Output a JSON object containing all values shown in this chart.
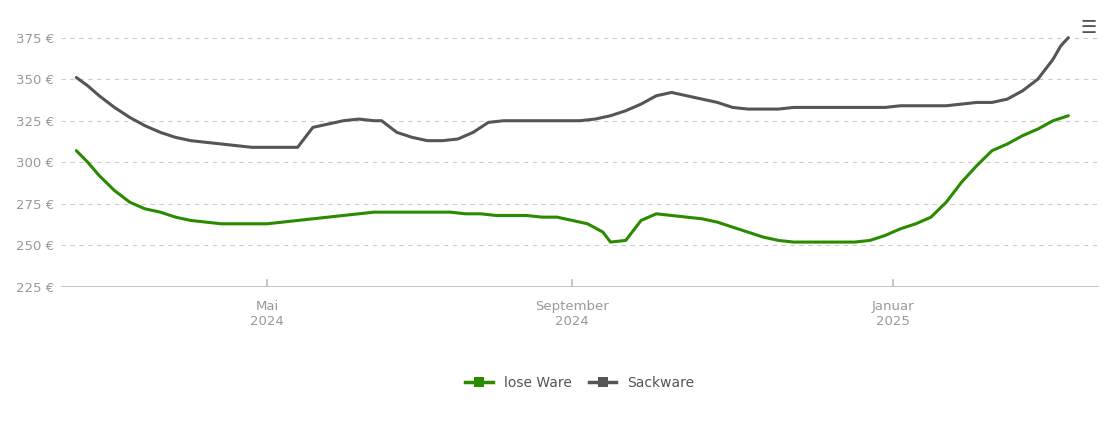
{
  "background_color": "#ffffff",
  "grid_color": "#cccccc",
  "ylim": [
    225,
    390
  ],
  "yticks": [
    225,
    250,
    275,
    300,
    325,
    350,
    375
  ],
  "ytick_labels": [
    "225 €",
    "250 €",
    "275 €",
    "300 €",
    "325 €",
    "350 €",
    "375 €"
  ],
  "lose_ware_color": "#2a8a00",
  "sackware_color": "#555555",
  "line_width": 2.2,
  "lose_ware_x": [
    0.0,
    0.15,
    0.3,
    0.5,
    0.7,
    0.9,
    1.1,
    1.3,
    1.5,
    1.7,
    1.9,
    2.1,
    2.3,
    2.5,
    2.7,
    2.9,
    3.1,
    3.3,
    3.5,
    3.7,
    3.9,
    4.0,
    4.1,
    4.2,
    4.3,
    4.5,
    4.7,
    4.9,
    5.1,
    5.3,
    5.5,
    5.7,
    5.9,
    6.1,
    6.3,
    6.5,
    6.7,
    6.9,
    7.0,
    7.2,
    7.4,
    7.6,
    7.8,
    8.0,
    8.2,
    8.4,
    8.6,
    8.8,
    9.0,
    9.2,
    9.4,
    9.6,
    9.8,
    10.0,
    10.2,
    10.4,
    10.6,
    10.8,
    11.0,
    11.2,
    11.4,
    11.6,
    11.8,
    12.0,
    12.2,
    12.4,
    12.6,
    12.8,
    13.0
  ],
  "lose_ware_y": [
    307,
    300,
    292,
    283,
    276,
    272,
    270,
    267,
    265,
    264,
    263,
    263,
    263,
    263,
    264,
    265,
    266,
    267,
    268,
    269,
    270,
    270,
    270,
    270,
    270,
    270,
    270,
    270,
    269,
    269,
    268,
    268,
    268,
    267,
    267,
    265,
    263,
    258,
    252,
    253,
    265,
    269,
    268,
    267,
    266,
    264,
    261,
    258,
    255,
    253,
    252,
    252,
    252,
    252,
    252,
    253,
    256,
    260,
    263,
    267,
    276,
    288,
    298,
    307,
    311,
    316,
    320,
    325,
    328
  ],
  "sackware_x": [
    0.0,
    0.15,
    0.3,
    0.5,
    0.7,
    0.9,
    1.1,
    1.3,
    1.5,
    1.7,
    1.9,
    2.1,
    2.3,
    2.5,
    2.7,
    2.9,
    3.1,
    3.3,
    3.5,
    3.7,
    3.9,
    4.0,
    4.2,
    4.4,
    4.6,
    4.8,
    5.0,
    5.2,
    5.4,
    5.6,
    5.8,
    6.0,
    6.2,
    6.4,
    6.6,
    6.8,
    7.0,
    7.2,
    7.4,
    7.6,
    7.8,
    8.0,
    8.2,
    8.4,
    8.6,
    8.8,
    9.0,
    9.2,
    9.4,
    9.6,
    9.8,
    10.0,
    10.2,
    10.4,
    10.6,
    10.8,
    11.0,
    11.2,
    11.4,
    11.6,
    11.8,
    12.0,
    12.2,
    12.4,
    12.6,
    12.8,
    12.9,
    13.0
  ],
  "sackware_y": [
    351,
    346,
    340,
    333,
    327,
    322,
    318,
    315,
    313,
    312,
    311,
    310,
    309,
    309,
    309,
    309,
    321,
    323,
    325,
    326,
    325,
    325,
    318,
    315,
    313,
    313,
    314,
    318,
    324,
    325,
    325,
    325,
    325,
    325,
    325,
    326,
    328,
    331,
    335,
    340,
    342,
    340,
    338,
    336,
    333,
    332,
    332,
    332,
    333,
    333,
    333,
    333,
    333,
    333,
    333,
    334,
    334,
    334,
    334,
    335,
    336,
    336,
    338,
    343,
    350,
    362,
    370,
    375
  ],
  "xtick_mai_x": 2.5,
  "xtick_sep_x": 6.5,
  "xtick_jan_x": 10.7,
  "legend_labels": [
    "lose Ware",
    "Sackware"
  ],
  "hamburger_color": "#555555"
}
